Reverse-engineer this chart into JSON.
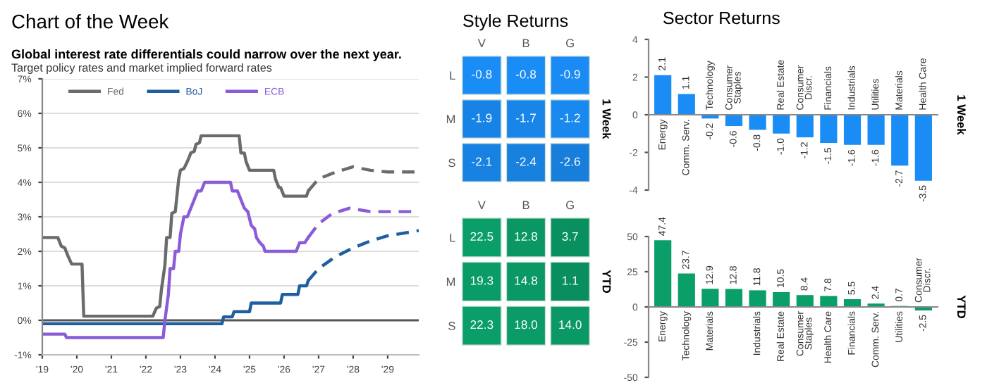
{
  "chart_data": [
    {
      "type": "line",
      "title": "Chart of the Week",
      "subtitle": "Global interest rate differentials could narrow over the next year.",
      "annotations": [
        "Target policy rates and market implied forward rates"
      ],
      "xlim": [
        2019,
        2029.9
      ],
      "xticks": [
        {
          "value": 2019,
          "label": "'19"
        },
        {
          "value": 2020,
          "label": "'20"
        },
        {
          "value": 2021,
          "label": "'21"
        },
        {
          "value": 2022,
          "label": "'22"
        },
        {
          "value": 2023,
          "label": "'23"
        },
        {
          "value": 2024,
          "label": "'24"
        },
        {
          "value": 2025,
          "label": "'25"
        },
        {
          "value": 2026,
          "label": "'26"
        },
        {
          "value": 2027,
          "label": "'27"
        },
        {
          "value": 2028,
          "label": "'28"
        },
        {
          "value": 2029,
          "label": "'29"
        }
      ],
      "ylim": [
        -1,
        7
      ],
      "yticks": [
        {
          "value": -1,
          "label": "-1%"
        },
        {
          "value": 0,
          "label": "0%"
        },
        {
          "value": 1,
          "label": "1%"
        },
        {
          "value": 2,
          "label": "2%"
        },
        {
          "value": 3,
          "label": "3%"
        },
        {
          "value": 4,
          "label": "4%"
        },
        {
          "value": 5,
          "label": "5%"
        },
        {
          "value": 6,
          "label": "6%"
        },
        {
          "value": 7,
          "label": "7%"
        }
      ],
      "grid": "y",
      "legend": "top left",
      "ref_lines": [
        {
          "axis": "y",
          "value": 0,
          "color": "#555555"
        }
      ],
      "series": [
        {
          "name": "Fed",
          "color": "#6b6b6b",
          "line_style": "solid",
          "x": [
            2019.0,
            2019.45,
            2019.55,
            2019.65,
            2019.75,
            2019.85,
            2020.15,
            2020.2,
            2022.2,
            2022.3,
            2022.4,
            2022.45,
            2022.55,
            2022.6,
            2022.7,
            2022.75,
            2022.85,
            2022.95,
            2023.0,
            2023.1,
            2023.2,
            2023.3,
            2023.4,
            2023.45,
            2023.55,
            2023.6,
            2024.7,
            2024.75,
            2024.85,
            2024.9,
            2025.0,
            2025.7,
            2025.75,
            2025.85,
            2025.9,
            2026.0,
            2026.65,
            2026.7
          ],
          "values": [
            2.4,
            2.4,
            2.15,
            2.1,
            1.85,
            1.63,
            1.63,
            0.12,
            0.12,
            0.35,
            0.4,
            0.9,
            1.6,
            2.4,
            2.4,
            3.1,
            3.15,
            4.1,
            4.35,
            4.4,
            4.6,
            4.85,
            4.9,
            5.1,
            5.15,
            5.35,
            5.35,
            4.85,
            4.85,
            4.6,
            4.35,
            4.35,
            4.1,
            3.85,
            3.85,
            3.6,
            3.6,
            3.75
          ]
        },
        {
          "name": "BoJ",
          "color": "#1f5fa0",
          "line_style": "solid",
          "x": [
            2019.0,
            2024.2,
            2024.25,
            2024.5,
            2024.55,
            2025.0,
            2025.05,
            2025.9,
            2025.95,
            2026.4,
            2026.45,
            2026.65,
            2026.7
          ],
          "values": [
            -0.1,
            -0.1,
            0.1,
            0.1,
            0.25,
            0.25,
            0.5,
            0.5,
            0.75,
            0.75,
            1.0,
            1.0,
            1.15
          ]
        },
        {
          "name": "ECB",
          "color": "#8a5cd8",
          "line_style": "solid",
          "x": [
            2019.0,
            2019.65,
            2019.7,
            2022.5,
            2022.55,
            2022.65,
            2022.7,
            2022.8,
            2022.85,
            2022.95,
            2023.0,
            2023.1,
            2023.2,
            2023.3,
            2023.4,
            2023.5,
            2023.6,
            2023.7,
            2024.45,
            2024.5,
            2024.65,
            2024.75,
            2024.85,
            2024.95,
            2025.05,
            2025.15,
            2025.2,
            2025.3,
            2025.4,
            2025.45,
            2026.35,
            2026.45,
            2026.6,
            2026.7
          ],
          "values": [
            -0.4,
            -0.4,
            -0.5,
            -0.5,
            0.0,
            0.75,
            1.5,
            1.5,
            2.0,
            2.0,
            2.5,
            3.0,
            3.0,
            3.25,
            3.5,
            3.75,
            3.75,
            4.0,
            4.0,
            3.75,
            3.75,
            3.5,
            3.25,
            3.15,
            2.75,
            2.65,
            2.4,
            2.25,
            2.15,
            2.0,
            2.0,
            2.25,
            2.25,
            2.4
          ]
        },
        {
          "color": "#6b6b6b",
          "line_style": "dashed",
          "x": [
            2026.7,
            2027.0,
            2027.5,
            2028.0,
            2028.5,
            2029.0,
            2029.9
          ],
          "values": [
            3.75,
            4.1,
            4.3,
            4.45,
            4.35,
            4.3,
            4.3
          ]
        },
        {
          "color": "#1f5fa0",
          "line_style": "dashed",
          "x": [
            2026.7,
            2027.0,
            2027.5,
            2028.0,
            2028.5,
            2029.0,
            2029.9
          ],
          "values": [
            1.15,
            1.5,
            1.85,
            2.1,
            2.3,
            2.45,
            2.6
          ]
        },
        {
          "color": "#8a5cd8",
          "line_style": "dashed",
          "x": [
            2026.7,
            2027.0,
            2027.4,
            2027.9,
            2028.5,
            2029.9
          ],
          "values": [
            2.4,
            2.8,
            3.1,
            3.25,
            3.15,
            3.15
          ]
        }
      ]
    },
    {
      "type": "heatmap",
      "title": "Style Returns",
      "y2label": "1 Week",
      "color": "#1a8cf5",
      "categories": [
        "V",
        "B",
        "G"
      ],
      "y_categories": [
        "L",
        "M",
        "S"
      ],
      "cells": [
        [
          -0.8,
          -0.8,
          -0.9
        ],
        [
          -1.9,
          -1.7,
          -1.2
        ],
        [
          -2.1,
          -2.4,
          -2.6
        ]
      ],
      "cell_labels": [
        [
          "-0.8",
          "-0.8",
          "-0.9"
        ],
        [
          "-1.9",
          "-1.7",
          "-1.2"
        ],
        [
          "-2.1",
          "-2.4",
          "-2.6"
        ]
      ]
    },
    {
      "type": "heatmap",
      "y2label": "YTD",
      "color": "#0a9e68",
      "categories": [
        "V",
        "B",
        "G"
      ],
      "y_categories": [
        "L",
        "M",
        "S"
      ],
      "cells": [
        [
          22.5,
          12.8,
          3.7
        ],
        [
          19.3,
          14.8,
          1.1
        ],
        [
          22.3,
          18.0,
          14.0
        ]
      ],
      "cell_labels": [
        [
          "22.5",
          "12.8",
          "3.7"
        ],
        [
          "19.3",
          "14.8",
          "1.1"
        ],
        [
          "22.3",
          "18.0",
          "14.0"
        ]
      ]
    },
    {
      "type": "bar",
      "title": "Sector Returns",
      "y2label": "1 Week",
      "ylim": [
        -4,
        4
      ],
      "yticks": [
        -4,
        -2,
        0,
        2,
        4
      ],
      "categories": [
        "Energy",
        "Comm. Serv.",
        "Technology",
        "Consumer\nStaples",
        null,
        "Real Estate",
        "Consumer\nDiscr.",
        "Financials",
        "Industrials",
        "Utilities",
        "Materials",
        "Health Care"
      ],
      "series": [
        {
          "color": "#1a8cf5",
          "values": [
            2.1,
            1.1,
            -0.2,
            -0.6,
            -0.8,
            -1.0,
            -1.2,
            -1.5,
            -1.6,
            -1.6,
            -2.7,
            -3.5
          ],
          "value_labels": [
            "2.1",
            "1.1",
            "-0.2",
            "-0.6",
            "-0.8",
            "-1.0",
            "-1.2",
            "-1.5",
            "-1.6",
            "-1.6",
            "-2.7",
            "-3.5"
          ]
        }
      ]
    },
    {
      "type": "bar",
      "y2label": "YTD",
      "ylim": [
        -50,
        50
      ],
      "yticks": [
        -50,
        -25,
        0,
        25,
        50
      ],
      "categories": [
        "Energy",
        "Technology",
        "Materials",
        null,
        "Industrials",
        "Real Estate",
        "Consumer\nStaples",
        "Health Care",
        "Financials",
        "Comm. Serv.",
        "Utilities",
        "Consumer\nDiscr."
      ],
      "series": [
        {
          "color": "#0a9e68",
          "values": [
            47.4,
            23.7,
            12.9,
            12.8,
            11.8,
            10.5,
            8.4,
            7.8,
            5.5,
            2.4,
            0.7,
            -2.5
          ],
          "value_labels": [
            "47.4",
            "23.7",
            "12.9",
            "12.8",
            "11.8",
            "10.5",
            "8.4",
            "7.8",
            "5.5",
            "2.4",
            "0.7",
            "-2.5"
          ]
        }
      ]
    }
  ]
}
